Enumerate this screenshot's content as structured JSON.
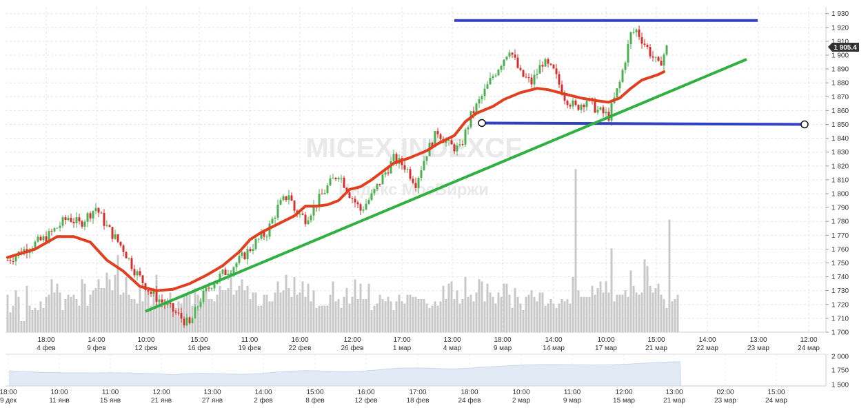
{
  "chart_data": [
    {
      "type": "candlestick",
      "watermark": {
        "title": "MICEX INDEXCF",
        "subtitle": "Индекс МосБиржи"
      },
      "y_ticks": [
        1700,
        1710,
        1720,
        1730,
        1740,
        1750,
        1760,
        1770,
        1780,
        1790,
        1800,
        1810,
        1820,
        1830,
        1840,
        1850,
        1860,
        1870,
        1880,
        1890,
        1900,
        1910,
        1920,
        1930
      ],
      "y_tick_labels": [
        "1 700",
        "1 710",
        "1 720",
        "1 730",
        "1 740",
        "1 750",
        "1 760",
        "1 770",
        "1 780",
        "1 790",
        "1 800",
        "1 810",
        "1 820",
        "1 830",
        "1 840",
        "1 850",
        "1 860",
        "1 870",
        "1 880",
        "1 890",
        "1 900",
        "1 910",
        "1 920",
        "1 930"
      ],
      "ylim": [
        1700,
        1935
      ],
      "last_price": {
        "value": 1905.4,
        "label": "1 905.4",
        "color": "#333333"
      },
      "x_ticks": [
        {
          "time": "18:00",
          "date": "4 фев"
        },
        {
          "time": "14:00",
          "date": "9 фев"
        },
        {
          "time": "10:00",
          "date": "12 фев"
        },
        {
          "time": "15:00",
          "date": "16 фев"
        },
        {
          "time": "11:00",
          "date": "19 фев"
        },
        {
          "time": "16:00",
          "date": "22 фев"
        },
        {
          "time": "12:00",
          "date": "26 фев"
        },
        {
          "time": "17:00",
          "date": "1 мар"
        },
        {
          "time": "13:00",
          "date": "4 мар"
        },
        {
          "time": "18:00",
          "date": "9 мар"
        },
        {
          "time": "14:00",
          "date": "14 мар"
        },
        {
          "time": "10:00",
          "date": "17 мар"
        },
        {
          "time": "15:00",
          "date": "21 мар"
        },
        {
          "time": "14:00",
          "date": "22 мар"
        },
        {
          "time": "13:00",
          "date": "23 мар"
        },
        {
          "time": "12:00",
          "date": "24 мар"
        }
      ],
      "candle_count": 240,
      "price_path": [
        [
          0,
          1752
        ],
        [
          8,
          1762
        ],
        [
          14,
          1768
        ],
        [
          16,
          1772
        ],
        [
          22,
          1783
        ],
        [
          26,
          1778
        ],
        [
          32,
          1790
        ],
        [
          36,
          1776
        ],
        [
          42,
          1760
        ],
        [
          46,
          1745
        ],
        [
          52,
          1728
        ],
        [
          56,
          1722
        ],
        [
          62,
          1712
        ],
        [
          66,
          1705
        ],
        [
          70,
          1724
        ],
        [
          74,
          1735
        ],
        [
          78,
          1742
        ],
        [
          82,
          1748
        ],
        [
          86,
          1756
        ],
        [
          90,
          1765
        ],
        [
          94,
          1772
        ],
        [
          98,
          1790
        ],
        [
          102,
          1800
        ],
        [
          104,
          1788
        ],
        [
          108,
          1782
        ],
        [
          112,
          1793
        ],
        [
          116,
          1805
        ],
        [
          120,
          1815
        ],
        [
          124,
          1800
        ],
        [
          128,
          1788
        ],
        [
          132,
          1798
        ],
        [
          136,
          1812
        ],
        [
          140,
          1825
        ],
        [
          144,
          1820
        ],
        [
          148,
          1808
        ],
        [
          152,
          1830
        ],
        [
          156,
          1845
        ],
        [
          160,
          1835
        ],
        [
          164,
          1832
        ],
        [
          168,
          1856
        ],
        [
          172,
          1870
        ],
        [
          176,
          1885
        ],
        [
          180,
          1898
        ],
        [
          182,
          1905
        ],
        [
          186,
          1886
        ],
        [
          190,
          1880
        ],
        [
          194,
          1895
        ],
        [
          198,
          1888
        ],
        [
          202,
          1870
        ],
        [
          206,
          1862
        ],
        [
          210,
          1868
        ],
        [
          214,
          1860
        ],
        [
          218,
          1856
        ],
        [
          222,
          1880
        ],
        [
          226,
          1915
        ],
        [
          228,
          1918
        ],
        [
          232,
          1905
        ],
        [
          236,
          1892
        ],
        [
          239,
          1905
        ]
      ],
      "moving_average": {
        "color": "#e04020",
        "points": [
          [
            0,
            1754
          ],
          [
            10,
            1760
          ],
          [
            18,
            1769
          ],
          [
            24,
            1769
          ],
          [
            30,
            1765
          ],
          [
            36,
            1752
          ],
          [
            42,
            1744
          ],
          [
            48,
            1733
          ],
          [
            54,
            1730
          ],
          [
            60,
            1731
          ],
          [
            66,
            1735
          ],
          [
            72,
            1741
          ],
          [
            78,
            1748
          ],
          [
            84,
            1758
          ],
          [
            88,
            1767
          ],
          [
            92,
            1772
          ],
          [
            96,
            1776
          ],
          [
            100,
            1780
          ],
          [
            104,
            1784
          ],
          [
            108,
            1791
          ],
          [
            112,
            1791
          ],
          [
            116,
            1792
          ],
          [
            120,
            1795
          ],
          [
            124,
            1803
          ],
          [
            128,
            1805
          ],
          [
            132,
            1810
          ],
          [
            136,
            1816
          ],
          [
            140,
            1822
          ],
          [
            146,
            1826
          ],
          [
            152,
            1831
          ],
          [
            156,
            1836
          ],
          [
            162,
            1842
          ],
          [
            166,
            1852
          ],
          [
            170,
            1858
          ],
          [
            176,
            1863
          ],
          [
            180,
            1868
          ],
          [
            186,
            1873
          ],
          [
            192,
            1876
          ],
          [
            196,
            1875
          ],
          [
            202,
            1872
          ],
          [
            208,
            1869
          ],
          [
            214,
            1867
          ],
          [
            218,
            1866
          ],
          [
            222,
            1869
          ],
          [
            226,
            1876
          ],
          [
            230,
            1882
          ],
          [
            236,
            1886
          ],
          [
            238,
            1888
          ]
        ]
      },
      "volume": [
        17,
        9,
        12,
        19,
        16,
        5,
        5,
        21,
        12,
        10,
        11,
        10,
        14,
        11,
        16,
        17,
        24,
        18,
        22,
        18,
        10,
        15,
        17,
        16,
        17,
        15,
        12,
        24,
        22,
        12,
        17,
        19,
        20,
        24,
        20,
        20,
        27,
        24,
        19,
        26,
        35,
        17,
        18,
        25,
        17,
        15,
        15,
        13,
        20,
        14,
        20,
        19,
        12,
        19,
        26,
        15,
        15,
        15,
        14,
        18,
        12,
        10,
        14,
        13,
        17,
        17,
        17,
        12,
        20,
        17,
        15,
        16,
        19,
        15,
        15,
        14,
        17,
        21,
        19,
        19,
        20,
        28,
        17,
        19,
        21,
        24,
        19,
        21,
        15,
        18,
        18,
        12,
        12,
        17,
        17,
        14,
        14,
        18,
        23,
        18,
        19,
        26,
        20,
        16,
        25,
        17,
        18,
        23,
        16,
        22,
        14,
        19,
        11,
        12,
        12,
        12,
        12,
        17,
        23,
        14,
        15,
        11,
        16,
        20,
        13,
        16,
        24,
        15,
        22,
        15,
        15,
        22,
        10,
        12,
        13,
        17,
        15,
        14,
        16,
        14,
        10,
        14,
        17,
        14,
        13,
        17,
        17,
        16,
        16,
        15,
        15,
        15,
        13,
        11,
        12,
        14,
        12,
        14,
        21,
        15,
        22,
        23,
        15,
        19,
        13,
        15,
        25,
        16,
        17,
        14,
        18,
        24,
        23,
        14,
        22,
        18,
        16,
        13,
        18,
        16,
        22,
        22,
        17,
        11,
        20,
        16,
        13,
        10,
        16,
        17,
        19,
        16,
        14,
        18,
        18,
        12,
        13,
        15,
        13,
        11,
        13,
        15,
        14,
        15,
        13,
        25,
        74,
        19,
        16,
        16,
        16,
        16,
        21,
        17,
        20,
        23,
        18,
        23,
        18,
        38,
        14,
        17,
        17,
        17,
        19,
        16,
        28,
        21,
        18,
        17,
        18,
        33,
        30,
        21,
        18,
        20,
        22,
        17,
        15,
        11,
        51,
        14,
        15,
        17
      ],
      "volume_color": "#c8c8c8",
      "lines": [
        {
          "name": "resistance",
          "color": "#3040c0",
          "from": [
            162,
            1925
          ],
          "to": [
            272,
            1925
          ],
          "ext_x": 272
        },
        {
          "name": "support",
          "color": "#3040c0",
          "from": [
            172,
            1851
          ],
          "to": [
            289,
            1850
          ],
          "endpoint_markers": true,
          "ext_x": 289
        },
        {
          "name": "trendline",
          "color": "#30b040",
          "from": [
            50,
            1715
          ],
          "to": [
            268,
            1897
          ],
          "ext_x": 268
        }
      ],
      "up_color": "#4caf50",
      "down_color": "#d32f2f"
    },
    {
      "type": "area",
      "role": "navigator",
      "y_tick_labels": [
        "2 000",
        "1 750",
        "1 500"
      ],
      "x_ticks": [
        {
          "time": "18:00",
          "date": "9 дек"
        },
        {
          "time": "10:00",
          "date": "11 янв"
        },
        {
          "time": "11:00",
          "date": "15 янв"
        },
        {
          "time": "12:00",
          "date": "21 янв"
        },
        {
          "time": "13:00",
          "date": "27 янв"
        },
        {
          "time": "14:00",
          "date": "2 фев"
        },
        {
          "time": "15:00",
          "date": "8 фев"
        },
        {
          "time": "16:00",
          "date": "12 фев"
        },
        {
          "time": "17:00",
          "date": "18 фев"
        },
        {
          "time": "18:00",
          "date": "24 фев"
        },
        {
          "time": "10:00",
          "date": "2 мар"
        },
        {
          "time": "11:00",
          "date": "9 мар"
        },
        {
          "time": "12:00",
          "date": "15 мар"
        },
        {
          "time": "13:00",
          "date": "21 мар"
        },
        {
          "time": "02:00",
          "date": "23 мар"
        },
        {
          "time": "15:00",
          "date": "24 мар"
        }
      ],
      "area_color": "#e2ebf5"
    }
  ]
}
